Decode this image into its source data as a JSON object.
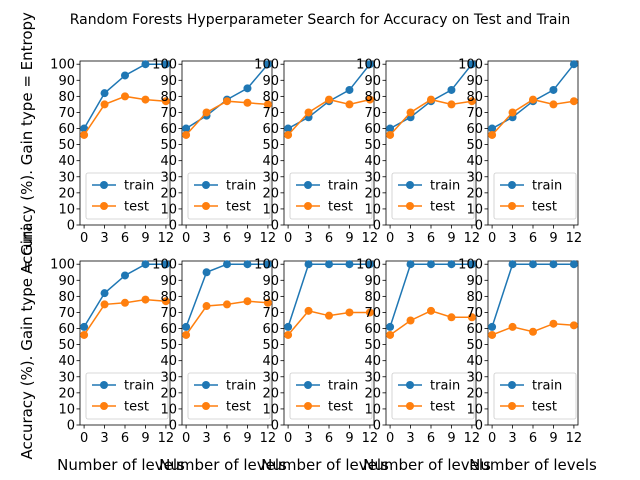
{
  "title": "Random Forests Hyperparameter Search for Accuracy on Test and Train",
  "ylabel_top": "Accuracy (%). Gain type = Entropy",
  "ylabel_bottom": "Accuracy (%). Gain type = Gini",
  "xlabel": "Number of levels",
  "colors": {
    "train": "#1f77b4",
    "test": "#ff7f0e"
  },
  "chart_data": {
    "type": "line",
    "grid": false,
    "legend_placement": "lower-center",
    "x_ticks": [
      0,
      3,
      6,
      9,
      12
    ],
    "y_ticks": [
      0,
      10,
      20,
      30,
      40,
      50,
      60,
      70,
      80,
      90,
      100
    ],
    "xlim": [
      -0.6,
      12.6
    ],
    "ylim": [
      0,
      102
    ],
    "series_names": [
      "train",
      "test"
    ],
    "x": [
      0,
      3,
      6,
      9,
      12
    ],
    "panels": [
      {
        "row": 0,
        "col": 0,
        "series": [
          {
            "name": "train",
            "values": [
              60,
              82,
              93,
              100,
              100
            ]
          },
          {
            "name": "test",
            "values": [
              56,
              75,
              80,
              78,
              77
            ]
          }
        ]
      },
      {
        "row": 0,
        "col": 1,
        "series": [
          {
            "name": "train",
            "values": [
              60,
              68,
              78,
              85,
              100
            ]
          },
          {
            "name": "test",
            "values": [
              56,
              70,
              77,
              76,
              75
            ]
          }
        ]
      },
      {
        "row": 0,
        "col": 2,
        "series": [
          {
            "name": "train",
            "values": [
              60,
              67,
              77,
              84,
              100
            ]
          },
          {
            "name": "test",
            "values": [
              56,
              70,
              78,
              75,
              78
            ]
          }
        ]
      },
      {
        "row": 0,
        "col": 3,
        "series": [
          {
            "name": "train",
            "values": [
              60,
              67,
              77,
              84,
              100
            ]
          },
          {
            "name": "test",
            "values": [
              56,
              70,
              78,
              75,
              77
            ]
          }
        ]
      },
      {
        "row": 0,
        "col": 4,
        "series": [
          {
            "name": "train",
            "values": [
              60,
              67,
              77,
              84,
              100
            ]
          },
          {
            "name": "test",
            "values": [
              56,
              70,
              78,
              75,
              77
            ]
          }
        ]
      },
      {
        "row": 1,
        "col": 0,
        "series": [
          {
            "name": "train",
            "values": [
              61,
              82,
              93,
              100,
              100
            ]
          },
          {
            "name": "test",
            "values": [
              56,
              75,
              76,
              78,
              77
            ]
          }
        ]
      },
      {
        "row": 1,
        "col": 1,
        "series": [
          {
            "name": "train",
            "values": [
              61,
              95,
              100,
              100,
              100
            ]
          },
          {
            "name": "test",
            "values": [
              56,
              74,
              75,
              77,
              76
            ]
          }
        ]
      },
      {
        "row": 1,
        "col": 2,
        "series": [
          {
            "name": "train",
            "values": [
              61,
              100,
              100,
              100,
              100
            ]
          },
          {
            "name": "test",
            "values": [
              56,
              71,
              68,
              70,
              70
            ]
          }
        ]
      },
      {
        "row": 1,
        "col": 3,
        "series": [
          {
            "name": "train",
            "values": [
              61,
              100,
              100,
              100,
              100
            ]
          },
          {
            "name": "test",
            "values": [
              56,
              65,
              71,
              67,
              67
            ]
          }
        ]
      },
      {
        "row": 1,
        "col": 4,
        "series": [
          {
            "name": "train",
            "values": [
              61,
              100,
              100,
              100,
              100
            ]
          },
          {
            "name": "test",
            "values": [
              56,
              61,
              58,
              63,
              62
            ]
          }
        ]
      }
    ]
  }
}
